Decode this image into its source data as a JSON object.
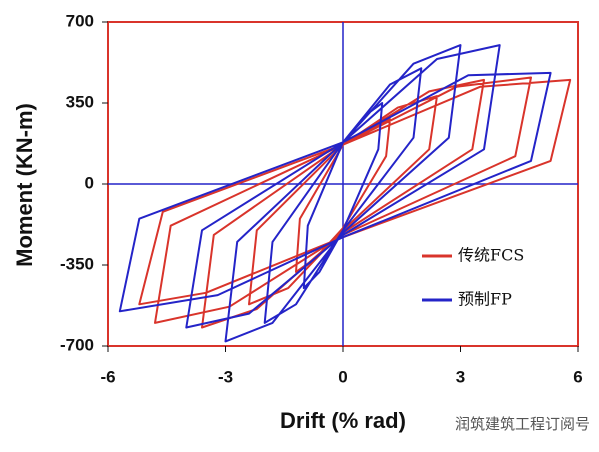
{
  "chart_data": {
    "type": "line",
    "x_label": "Drift (% rad)",
    "y_label": "Moment (KN-m)",
    "xlim": [
      -6,
      6
    ],
    "xticks": [
      -6,
      -3,
      0,
      3,
      6
    ],
    "ylim": [
      -700,
      700
    ],
    "yticks": [
      -700,
      -350,
      0,
      350,
      700
    ],
    "legend": "right",
    "annotation": "润筑建筑工程订阅号",
    "series": [
      {
        "name": "传统FCS",
        "color": "#d9342b",
        "x": [
          0,
          0.7,
          1.2,
          1.1,
          0,
          -0.7,
          -1.2,
          -1.1,
          0,
          1.4,
          2.4,
          2.2,
          0,
          -1.4,
          -2.4,
          -2.2,
          0,
          2.2,
          3.6,
          3.3,
          0,
          -2.2,
          -3.6,
          -3.3,
          0,
          2.9,
          4.8,
          4.4,
          0,
          -2.9,
          -4.8,
          -4.4,
          0,
          3.5,
          5.8,
          5.3,
          0,
          -3.5,
          -5.2,
          -4.6,
          0
        ],
        "values": [
          170,
          240,
          280,
          120,
          -190,
          -320,
          -380,
          -150,
          170,
          330,
          380,
          150,
          -200,
          -450,
          -520,
          -200,
          170,
          400,
          450,
          150,
          -210,
          -540,
          -620,
          -220,
          170,
          420,
          460,
          120,
          -220,
          -530,
          -600,
          -180,
          170,
          420,
          450,
          100,
          -230,
          -470,
          -520,
          -120,
          170
        ]
      },
      {
        "name": "预制FP",
        "color": "#2424c8",
        "x": [
          0,
          0.6,
          1,
          0.9,
          0,
          -0.6,
          -1,
          -0.9,
          0,
          1.2,
          2,
          1.8,
          0,
          -1.2,
          -2,
          -1.8,
          0,
          1.8,
          3,
          2.7,
          0,
          -1.8,
          -3,
          -2.7,
          0,
          2.4,
          4,
          3.6,
          0,
          -2.4,
          -4,
          -3.6,
          0,
          3.2,
          5.3,
          4.8,
          0,
          -3.2,
          -5.7,
          -5.2,
          0
        ],
        "values": [
          180,
          300,
          350,
          150,
          -200,
          -380,
          -450,
          -180,
          180,
          430,
          500,
          200,
          -200,
          -520,
          -600,
          -250,
          180,
          520,
          600,
          200,
          -210,
          -600,
          -680,
          -250,
          180,
          540,
          600,
          150,
          -220,
          -560,
          -620,
          -200,
          180,
          470,
          480,
          100,
          -230,
          -480,
          -550,
          -150,
          180
        ]
      }
    ]
  }
}
